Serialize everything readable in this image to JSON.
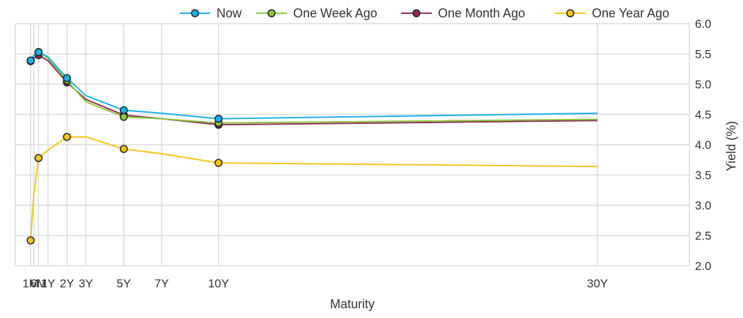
{
  "chart_data": {
    "type": "line",
    "title": "",
    "xlabel": "Maturity",
    "ylabel": "Yield (%)",
    "x_scale": "linear in months",
    "x_ticks": [
      {
        "label": "1M",
        "months": 1
      },
      {
        "label": "6M",
        "months": 6
      },
      {
        "label": "1Y",
        "months": 12
      },
      {
        "label": "2Y",
        "months": 24
      },
      {
        "label": "3Y",
        "months": 36
      },
      {
        "label": "5Y",
        "months": 60
      },
      {
        "label": "7Y",
        "months": 84
      },
      {
        "label": "10Y",
        "months": 120
      },
      {
        "label": "30Y",
        "months": 360
      }
    ],
    "x_minor_gridlines_months": [
      1,
      3,
      6,
      12,
      24,
      36,
      60,
      84,
      120,
      360
    ],
    "ylim": [
      2.0,
      6.0
    ],
    "y_ticks": [
      2.0,
      2.5,
      3.0,
      3.5,
      4.0,
      4.5,
      5.0,
      5.5,
      6.0
    ],
    "y_axis_position": "right",
    "grid": true,
    "legend_position": "top-right",
    "series": [
      {
        "name": "Now",
        "color": "#1ab0e8",
        "points": [
          {
            "months": 1,
            "value": 5.39,
            "marker": true
          },
          {
            "months": 3,
            "value": 5.47,
            "marker": false
          },
          {
            "months": 6,
            "value": 5.53,
            "marker": true
          },
          {
            "months": 12,
            "value": 5.45,
            "marker": false
          },
          {
            "months": 24,
            "value": 5.1,
            "marker": true
          },
          {
            "months": 36,
            "value": 4.81,
            "marker": false
          },
          {
            "months": 60,
            "value": 4.57,
            "marker": true
          },
          {
            "months": 84,
            "value": 4.52,
            "marker": false
          },
          {
            "months": 120,
            "value": 4.43,
            "marker": true
          },
          {
            "months": 360,
            "value": 4.52,
            "marker": false
          }
        ]
      },
      {
        "name": "One Week Ago",
        "color": "#8dc63f",
        "points": [
          {
            "months": 1,
            "value": 5.39,
            "marker": true
          },
          {
            "months": 3,
            "value": 5.48,
            "marker": false
          },
          {
            "months": 6,
            "value": 5.53,
            "marker": true
          },
          {
            "months": 12,
            "value": 5.43,
            "marker": false
          },
          {
            "months": 24,
            "value": 5.06,
            "marker": true
          },
          {
            "months": 36,
            "value": 4.71,
            "marker": false
          },
          {
            "months": 60,
            "value": 4.46,
            "marker": true
          },
          {
            "months": 84,
            "value": 4.43,
            "marker": false
          },
          {
            "months": 120,
            "value": 4.36,
            "marker": true
          },
          {
            "months": 360,
            "value": 4.42,
            "marker": false
          }
        ]
      },
      {
        "name": "One Month Ago",
        "color": "#8b2e4e",
        "points": [
          {
            "months": 1,
            "value": 5.38,
            "marker": true
          },
          {
            "months": 3,
            "value": 5.43,
            "marker": false
          },
          {
            "months": 6,
            "value": 5.48,
            "marker": true
          },
          {
            "months": 12,
            "value": 5.39,
            "marker": false
          },
          {
            "months": 24,
            "value": 5.03,
            "marker": true
          },
          {
            "months": 36,
            "value": 4.75,
            "marker": false
          },
          {
            "months": 60,
            "value": 4.49,
            "marker": true
          },
          {
            "months": 84,
            "value": 4.43,
            "marker": false
          },
          {
            "months": 120,
            "value": 4.33,
            "marker": true
          },
          {
            "months": 360,
            "value": 4.4,
            "marker": false
          }
        ]
      },
      {
        "name": "One Year Ago",
        "color": "#f5c518",
        "points": [
          {
            "months": 1,
            "value": 2.42,
            "marker": true
          },
          {
            "months": 3,
            "value": 3.17,
            "marker": false
          },
          {
            "months": 6,
            "value": 3.78,
            "marker": true
          },
          {
            "months": 12,
            "value": 3.91,
            "marker": false
          },
          {
            "months": 24,
            "value": 4.13,
            "marker": true
          },
          {
            "months": 36,
            "value": 4.13,
            "marker": false
          },
          {
            "months": 60,
            "value": 3.93,
            "marker": true
          },
          {
            "months": 84,
            "value": 3.85,
            "marker": false
          },
          {
            "months": 120,
            "value": 3.7,
            "marker": true
          },
          {
            "months": 360,
            "value": 3.64,
            "marker": false
          }
        ]
      }
    ]
  }
}
